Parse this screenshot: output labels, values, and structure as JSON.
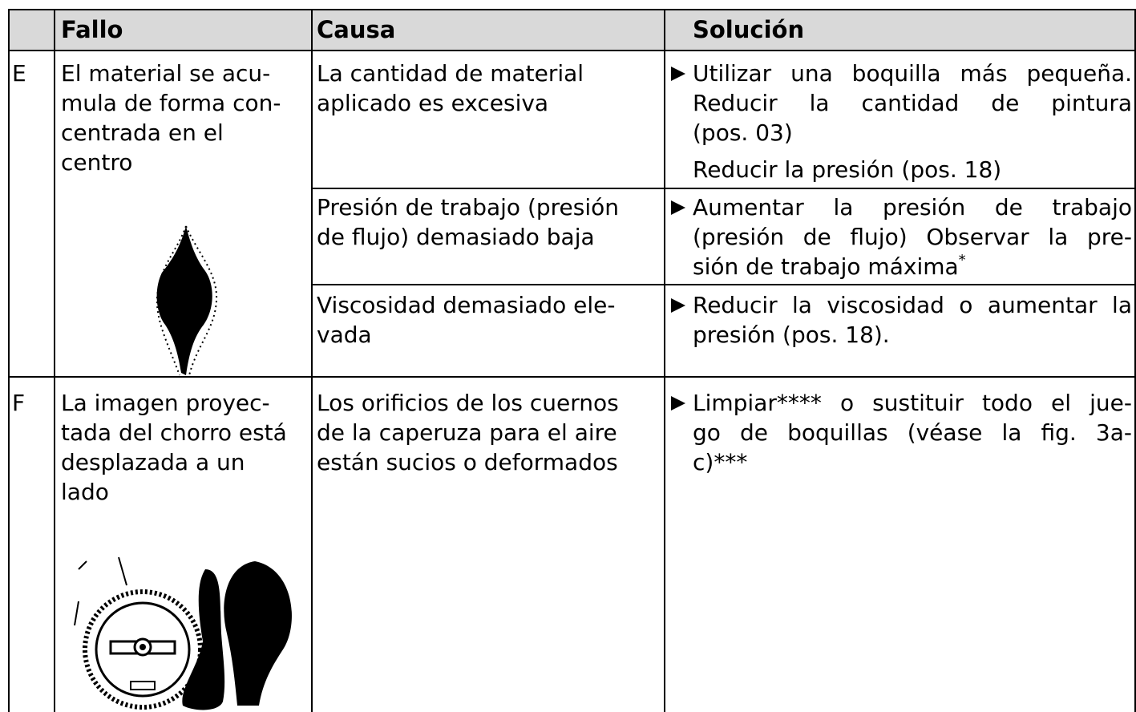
{
  "table": {
    "header": [
      "Fallo",
      "Causa",
      "Solución"
    ],
    "rows": [
      {
        "code": "E",
        "fallo": [
          "El material se acu-",
          "mula de forma con-",
          "centrada en el",
          "centro"
        ],
        "causes": [
          {
            "causa": [
              "La cantidad de material",
              "aplicado es excesiva"
            ],
            "solucion": [
              "Utilizar una boquilla más pequeña.",
              "Reducir la cantidad de pintura",
              "(pos. 03)"
            ],
            "extra": "Reducir la presión (pos. 18)"
          },
          {
            "causa": [
              "Presión de trabajo (presión",
              "de flujo) demasiado baja"
            ],
            "solucion": [
              "Aumentar la presión de trabajo",
              "(presión de flujo) Observar la pre-",
              "sión de trabajo máxima"
            ],
            "sup": "*"
          },
          {
            "causa": [
              "Viscosidad demasiado ele-",
              "vada"
            ],
            "solucion": [
              "Reducir la viscosidad o aumentar la",
              "presión (pos. 18)."
            ]
          }
        ]
      },
      {
        "code": "F",
        "fallo": [
          "La imagen proyec-",
          "tada del chorro está",
          "desplazada a un",
          "lado"
        ],
        "causes": [
          {
            "causa": [
              "Los orificios de los cuernos",
              "de la caperuza para el aire",
              "están sucios o deformados"
            ],
            "solucion": [
              "Limpiar**** o sustituir todo el jue-",
              "go de boquillas (véase la fig. 3a-",
              "c)***"
            ]
          }
        ]
      }
    ]
  }
}
